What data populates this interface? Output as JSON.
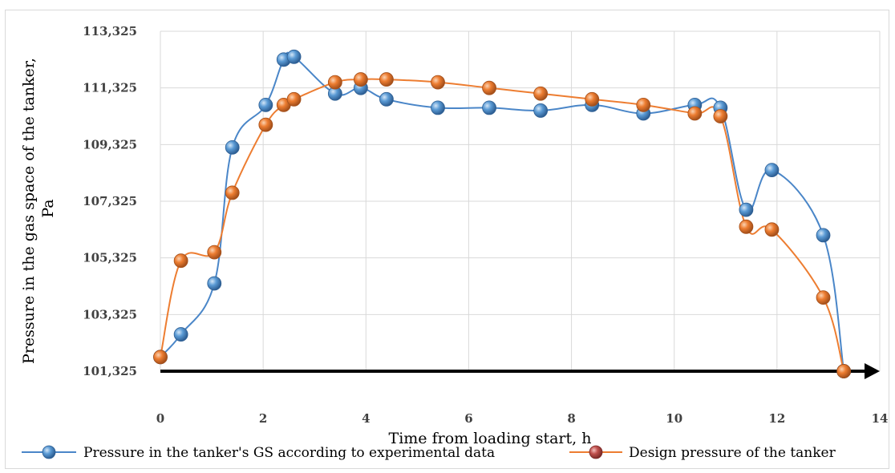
{
  "chart_data": {
    "type": "line",
    "title": "",
    "xlabel": "Time from loading start, h",
    "ylabel": "Pressure in the gas space of the tanker, Pa",
    "xlim": [
      0,
      14
    ],
    "ylim": [
      101325,
      113325
    ],
    "xticks": [
      "0",
      "2",
      "4",
      "6",
      "8",
      "10",
      "12",
      "14"
    ],
    "yticks": [
      "101,325",
      "103,325",
      "105,325",
      "107,325",
      "109,325",
      "111,325",
      "113,325"
    ],
    "grid": true,
    "legend_position": "bottom",
    "colors": {
      "experimental": "#4a86c8",
      "experimental_marker": "#5b9bd5",
      "design": "#ed7d31",
      "design_legend_marker": "#c0504d",
      "axis_arrow": "#000000",
      "grid": "#d9d9d9"
    },
    "series": [
      {
        "name": "Pressure in the tanker's GS according to experimental data",
        "x": [
          0,
          0.4,
          1.05,
          1.4,
          2.05,
          2.4,
          2.6,
          3.4,
          3.9,
          4.4,
          5.4,
          6.4,
          7.4,
          8.4,
          9.4,
          10.4,
          10.9,
          11.4,
          11.9,
          12.9,
          13.3
        ],
        "y": [
          101825,
          102625,
          104425,
          109225,
          110725,
          112325,
          112425,
          111125,
          111325,
          110925,
          110625,
          110625,
          110525,
          110725,
          110425,
          110725,
          110625,
          107025,
          108425,
          106125,
          101325
        ]
      },
      {
        "name": "Design pressure of the tanker",
        "x": [
          0,
          0.4,
          1.05,
          1.4,
          2.05,
          2.4,
          2.6,
          3.4,
          3.9,
          4.4,
          5.4,
          6.4,
          7.4,
          8.4,
          9.4,
          10.4,
          10.9,
          11.4,
          11.9,
          12.9,
          13.3
        ],
        "y": [
          101825,
          105225,
          105525,
          107625,
          110025,
          110725,
          110925,
          111525,
          111625,
          111625,
          111525,
          111325,
          111125,
          110925,
          110725,
          110425,
          110325,
          106425,
          106325,
          103925,
          101325
        ]
      }
    ]
  }
}
